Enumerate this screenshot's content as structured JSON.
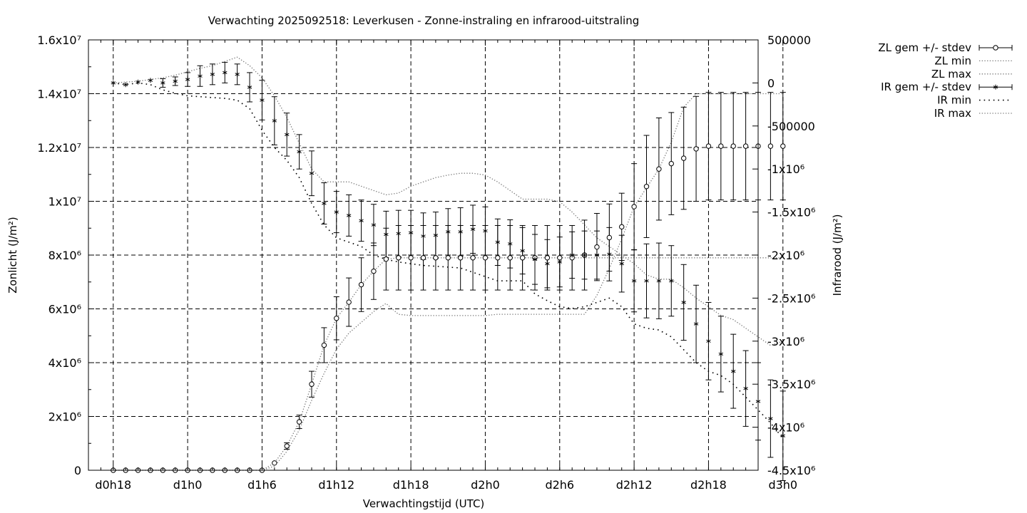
{
  "chart_data": {
    "type": "line",
    "title": "Verwachting 2025092518: Leverkusen - Zonne-instraling en infrarood-uitstraling",
    "xlabel": "Verwachtingstijd (UTC)",
    "ylabel": "Zonlicht (J/m²)",
    "y2label": "Infrarood (J/m²)",
    "x_ticks": [
      "d0h18",
      "d1h0",
      "d1h6",
      "d1h12",
      "d1h18",
      "d2h0",
      "d2h6",
      "d2h12",
      "d2h18",
      "d3h0"
    ],
    "y_ticks": [
      "0",
      "2x10⁶",
      "4x10⁶",
      "6x10⁶",
      "8x10⁶",
      "1x10⁷",
      "1.2x10⁷",
      "1.4x10⁷",
      "1.6x10⁷"
    ],
    "y2_ticks": [
      "-4.5x10⁶",
      "-4x10⁶",
      "-3.5x10⁶",
      "-3x10⁶",
      "-2.5x10⁶",
      "-2x10⁶",
      "-1.5x10⁶",
      "-1x10⁶",
      "-500000",
      "0",
      "500000"
    ],
    "xlim_hours": [
      16,
      70
    ],
    "ylim": [
      0,
      16000000
    ],
    "y2lim": [
      -4500000,
      500000
    ],
    "grid": true,
    "legend_position": "outside-right",
    "x_hours": [
      18,
      19,
      20,
      21,
      22,
      23,
      24,
      25,
      26,
      27,
      28,
      29,
      30,
      31,
      32,
      33,
      34,
      35,
      36,
      37,
      38,
      39,
      40,
      41,
      42,
      43,
      44,
      45,
      46,
      47,
      48,
      49,
      50,
      51,
      52,
      53,
      54,
      55,
      56,
      57,
      58,
      59,
      60,
      61,
      62,
      63,
      64,
      65,
      66,
      67,
      68,
      69,
      70,
      71,
      72
    ],
    "series": [
      {
        "name": "ZL gem +/- stdev",
        "axis": "y1",
        "marker": "circle",
        "mean": [
          0,
          0,
          0,
          0,
          0,
          0,
          0,
          0,
          0,
          0,
          0,
          0,
          0,
          270000,
          900000,
          1800000,
          3200000,
          4650000,
          5650000,
          6250000,
          6900000,
          7400000,
          7850000,
          7900000,
          7900000,
          7900000,
          7900000,
          7900000,
          7900000,
          7900000,
          7900000,
          7900000,
          7900000,
          7900000,
          7900000,
          7900000,
          7900000,
          7900000,
          8000000,
          8300000,
          8650000,
          9050000,
          9800000,
          10550000,
          11200000,
          11400000,
          11600000,
          11950000,
          12050000,
          12050000,
          12050000,
          12050000,
          12050000,
          12050000,
          12050000
        ],
        "stdev": [
          0,
          0,
          0,
          0,
          0,
          0,
          0,
          0,
          0,
          0,
          0,
          0,
          0,
          0,
          120000,
          250000,
          480000,
          650000,
          800000,
          900000,
          1000000,
          1050000,
          1150000,
          1200000,
          1200000,
          1200000,
          1200000,
          1200000,
          1200000,
          1200000,
          1200000,
          1200000,
          1200000,
          1200000,
          1200000,
          1200000,
          1200000,
          1200000,
          1300000,
          1250000,
          1250000,
          1250000,
          1600000,
          1900000,
          1900000,
          1900000,
          1900000,
          1950000,
          2000000,
          2000000,
          2000000,
          2000000,
          2000000,
          2000000,
          2000000
        ]
      },
      {
        "name": "ZL min",
        "axis": "y1",
        "style": "dotted-light",
        "values": [
          0,
          0,
          0,
          0,
          0,
          0,
          0,
          0,
          0,
          0,
          0,
          0,
          0,
          150000,
          700000,
          1500000,
          2600000,
          3600000,
          4500000,
          5100000,
          5500000,
          5900000,
          6200000,
          5800000,
          5750000,
          5750000,
          5750000,
          5750000,
          5750000,
          5750000,
          5750000,
          5800000,
          5800000,
          5800000,
          5800000,
          5800000,
          5800000,
          5800000,
          5800000,
          6500000,
          7500000,
          8600000,
          9800000,
          10500000,
          11200000,
          12200000,
          13500000,
          14000000,
          14000000,
          14000000,
          14000000,
          14000000,
          14000000,
          14000000,
          14000000
        ]
      },
      {
        "name": "ZL max",
        "axis": "y1",
        "style": "dotted-light",
        "values": [
          0,
          0,
          0,
          0,
          0,
          0,
          0,
          0,
          0,
          0,
          0,
          0,
          0,
          270000,
          900000,
          1800000,
          3200000,
          4650000,
          5650000,
          6250000,
          6900000,
          7400000,
          7850000,
          7900000,
          7900000,
          7900000,
          7900000,
          7900000,
          7900000,
          7900000,
          7900000,
          7900000,
          7900000,
          7900000,
          7900000,
          7900000,
          7900000,
          7900000,
          7900000,
          7900000,
          7900000,
          7900000,
          7900000,
          7900000,
          7900000,
          7900000,
          7900000,
          7900000,
          7900000,
          7900000,
          7900000,
          7900000,
          7900000,
          7900000,
          7900000
        ]
      },
      {
        "name": "IR gem +/- stdev",
        "axis": "y2",
        "marker": "star",
        "mean": [
          0,
          -20000,
          10000,
          30000,
          0,
          20000,
          40000,
          80000,
          100000,
          120000,
          100000,
          -50000,
          -200000,
          -440000,
          -600000,
          -800000,
          -1050000,
          -1400000,
          -1500000,
          -1540000,
          -1600000,
          -1650000,
          -1760000,
          -1750000,
          -1740000,
          -1780000,
          -1770000,
          -1730000,
          -1730000,
          -1700000,
          -1720000,
          -1850000,
          -1870000,
          -1950000,
          -2050000,
          -2100000,
          -2080000,
          -2000000,
          -2000000,
          -2000000,
          -1990000,
          -2100000,
          -2300000,
          -2300000,
          -2300000,
          -2300000,
          -2550000,
          -2800000,
          -3000000,
          -3150000,
          -3350000,
          -3550000,
          -3700000,
          -3900000,
          -4100000
        ],
        "stdev": [
          0,
          0,
          0,
          0,
          50000,
          50000,
          80000,
          120000,
          120000,
          120000,
          120000,
          170000,
          230000,
          280000,
          250000,
          200000,
          260000,
          240000,
          240000,
          240000,
          240000,
          240000,
          270000,
          270000,
          260000,
          270000,
          270000,
          270000,
          280000,
          280000,
          280000,
          270000,
          280000,
          270000,
          290000,
          280000,
          290000,
          270000,
          280000,
          280000,
          310000,
          330000,
          360000,
          430000,
          440000,
          410000,
          440000,
          450000,
          450000,
          440000,
          430000,
          440000,
          450000,
          450000,
          520000
        ]
      },
      {
        "name": "IR min",
        "axis": "y2",
        "style": "dotted-dark",
        "values": [
          0,
          -20000,
          0,
          -20000,
          -80000,
          -120000,
          -150000,
          -160000,
          -170000,
          -180000,
          -200000,
          -300000,
          -550000,
          -750000,
          -900000,
          -1100000,
          -1400000,
          -1650000,
          -1800000,
          -1850000,
          -1900000,
          -2000000,
          -2050000,
          -2080000,
          -2100000,
          -2120000,
          -2130000,
          -2140000,
          -2150000,
          -2200000,
          -2250000,
          -2300000,
          -2300000,
          -2300000,
          -2450000,
          -2530000,
          -2600000,
          -2620000,
          -2600000,
          -2550000,
          -2500000,
          -2600000,
          -2800000,
          -2850000,
          -2870000,
          -2950000,
          -3100000,
          -3250000,
          -3350000,
          -3400000,
          -3500000,
          -3650000,
          -3800000,
          -3950000,
          -4130000
        ]
      },
      {
        "name": "IR max",
        "axis": "y2",
        "style": "dotted-light",
        "values": [
          0,
          10000,
          20000,
          40000,
          60000,
          90000,
          130000,
          170000,
          200000,
          250000,
          300000,
          200000,
          60000,
          -150000,
          -400000,
          -700000,
          -1000000,
          -1150000,
          -1150000,
          -1150000,
          -1200000,
          -1250000,
          -1300000,
          -1280000,
          -1200000,
          -1150000,
          -1100000,
          -1070000,
          -1050000,
          -1050000,
          -1070000,
          -1150000,
          -1250000,
          -1350000,
          -1350000,
          -1350000,
          -1380000,
          -1500000,
          -1650000,
          -1800000,
          -1900000,
          -2000000,
          -2100000,
          -2230000,
          -2280000,
          -2280000,
          -2380000,
          -2500000,
          -2600000,
          -2700000,
          -2750000,
          -2850000,
          -2950000,
          -3050000,
          -3000000
        ]
      }
    ]
  }
}
